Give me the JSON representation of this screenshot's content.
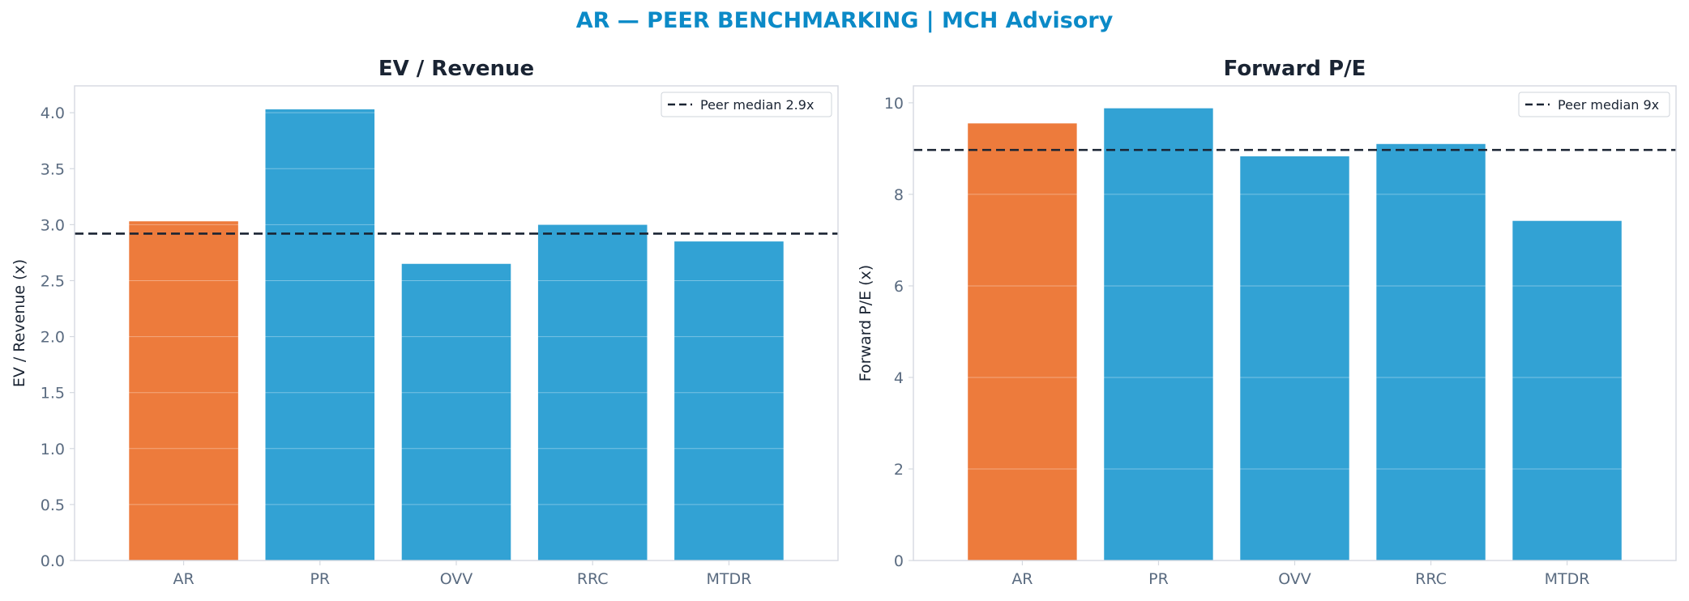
{
  "suptitle": "AR — PEER BENCHMARKING | MCH Advisory",
  "colors": {
    "highlight": "#ed7b3c",
    "peer": "#32a2d4",
    "median_line": "#1a2433",
    "title": "#1a2433",
    "suptitle": "#0b8ac7",
    "tick": "#5a6b80",
    "grid": "#eef1f5",
    "spine": "#d5d9e0"
  },
  "chart_data": [
    {
      "type": "bar",
      "title": "EV / Revenue",
      "xlabel": "",
      "ylabel": "EV / Revenue (x)",
      "categories": [
        "AR",
        "PR",
        "OVV",
        "RRC",
        "MTDR"
      ],
      "values": [
        3.03,
        4.03,
        2.65,
        3.0,
        2.85
      ],
      "highlight": "AR",
      "ylim": [
        0,
        4.24
      ],
      "yticks": [
        0.0,
        0.5,
        1.0,
        1.5,
        2.0,
        2.5,
        3.0,
        3.5,
        4.0
      ],
      "ytick_labels": [
        "0.0",
        "0.5",
        "1.0",
        "1.5",
        "2.0",
        "2.5",
        "3.0",
        "3.5",
        "4.0"
      ],
      "reference_line": {
        "value": 2.92,
        "label": "Peer median 2.9x"
      },
      "legend": "top-right",
      "grid": true
    },
    {
      "type": "bar",
      "title": "Forward P/E",
      "xlabel": "",
      "ylabel": "Forward P/E (x)",
      "categories": [
        "AR",
        "PR",
        "OVV",
        "RRC",
        "MTDR"
      ],
      "values": [
        9.55,
        9.88,
        8.83,
        9.1,
        7.42
      ],
      "highlight": "AR",
      "ylim": [
        0,
        10.37
      ],
      "yticks": [
        0,
        2,
        4,
        6,
        8,
        10
      ],
      "ytick_labels": [
        "0",
        "2",
        "4",
        "6",
        "8",
        "10"
      ],
      "reference_line": {
        "value": 8.97,
        "label": "Peer median 9x"
      },
      "legend": "top-right",
      "grid": true
    }
  ]
}
